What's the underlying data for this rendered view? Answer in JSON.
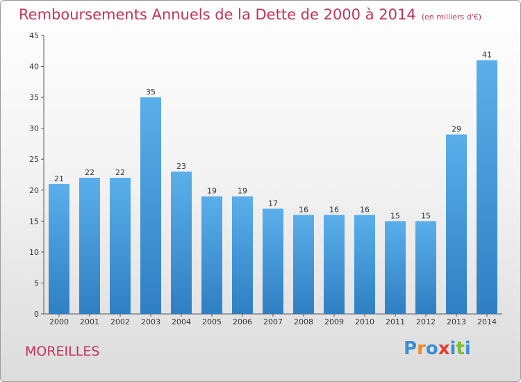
{
  "chart_data": {
    "type": "bar",
    "title": "Remboursements Annuels de la Dette de 2000 à 2014",
    "subtitle": "(en milliers d'€)",
    "categories": [
      "2000",
      "2001",
      "2002",
      "2003",
      "2004",
      "2005",
      "2006",
      "2007",
      "2008",
      "2009",
      "2010",
      "2011",
      "2012",
      "2013",
      "2014"
    ],
    "values": [
      21,
      22,
      22,
      35,
      23,
      19,
      19,
      17,
      16,
      16,
      16,
      15,
      15,
      29,
      41
    ],
    "ylim": [
      0,
      45
    ],
    "yticks": [
      0,
      5,
      10,
      15,
      20,
      25,
      30,
      35,
      40,
      45
    ],
    "grid": false,
    "colors": {
      "bar_light": "#5aafea",
      "bar_dark": "#2f7fc3",
      "axis": "#555555",
      "title": "#c0335b"
    }
  },
  "location": "MOREILLES",
  "logo": {
    "text": "Proxiti",
    "colors": [
      "#3b8fd6",
      "#f08a24",
      "#3b8fd6",
      "#e23c2b",
      "#3b8fd6",
      "#7dbb2f",
      "#3b8fd6"
    ]
  }
}
